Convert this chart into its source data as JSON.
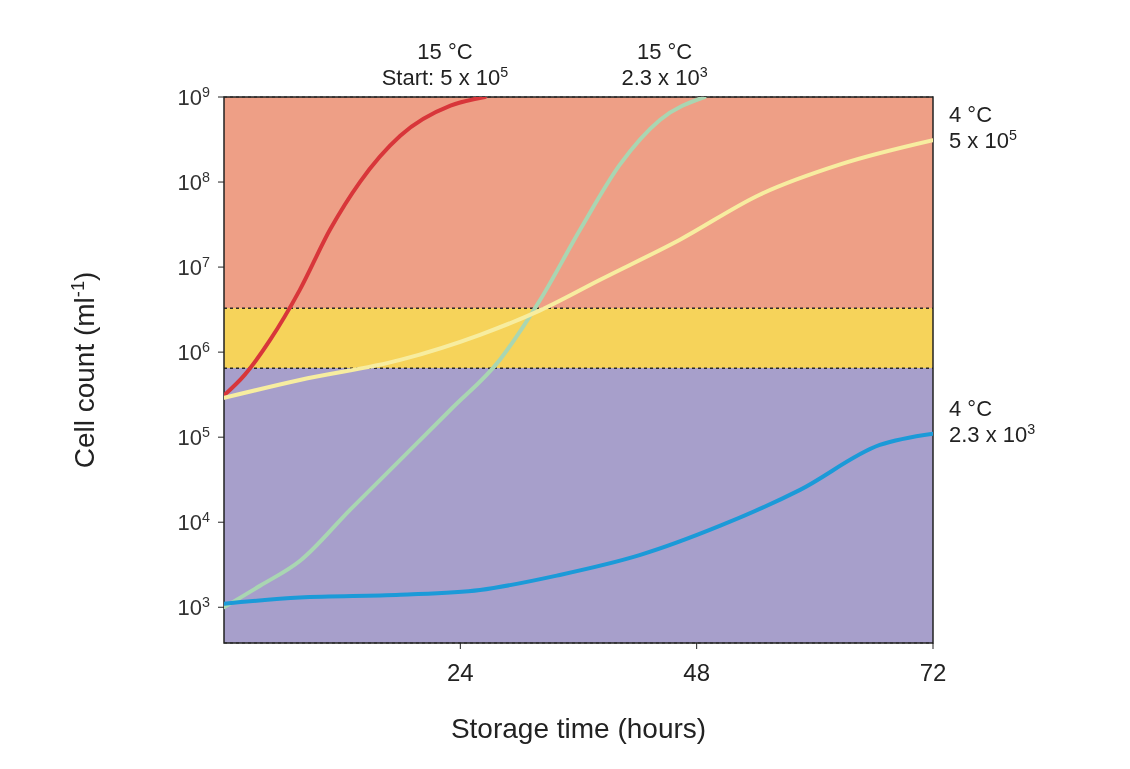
{
  "chart_data": {
    "type": "line",
    "xlabel": "Storage time (hours)",
    "ylabel": "Cell count (ml$^{-1}$)",
    "log": "y",
    "grid": false,
    "line_style": "solid",
    "xlim": [
      0,
      72
    ],
    "xticks": [
      24,
      48,
      72
    ],
    "ylim": [
      380,
      1000000000
    ],
    "yticks": [
      {
        "value": 1000,
        "label": "10$^{3}$"
      },
      {
        "value": 10000,
        "label": "10$^{4}$"
      },
      {
        "value": 100000,
        "label": "10$^{5}$"
      },
      {
        "value": 1000000,
        "label": "10$^{6}$"
      },
      {
        "value": 10000000,
        "label": "10$^{7}$"
      },
      {
        "value": 100000000,
        "label": "10$^{8}$"
      },
      {
        "value": 1000000000,
        "label": "10$^{9}$"
      }
    ],
    "bands": [
      {
        "axis": "y",
        "from": 380,
        "to": 650000,
        "color": "#a79fcb"
      },
      {
        "axis": "y",
        "from": 650000,
        "to": 3300000,
        "color": "#f6d35a"
      },
      {
        "axis": "y",
        "from": 3300000,
        "to": 1000000000,
        "color": "#ee9f86"
      }
    ],
    "series": [
      {
        "name": "15 °C\nStart: 5 x 10$^{5}$",
        "color": "#d8363a",
        "x": [
          0,
          2.1,
          4.7,
          7.7,
          10.8,
          13.8,
          17.9,
          23,
          26.5
        ],
        "values": [
          310000,
          540000,
          1400000,
          5400000,
          28000000,
          100000000,
          350000000,
          790000000,
          1000000000
        ]
      },
      {
        "name": "15 °C\n2.3 x 10$^{3}$",
        "color": "#a9d6b2",
        "x": [
          0,
          3.7,
          7.7,
          12.8,
          17.9,
          23,
          28,
          32.1,
          36.2,
          40.2,
          44.3,
          48.8
        ],
        "values": [
          1000,
          1800,
          3500,
          14000,
          54000,
          210000,
          810000,
          4100000,
          28000000,
          160000000,
          540000000,
          1000000000
        ]
      },
      {
        "name": "4 °C\n5 x 10$^{5}$",
        "color": "#f7eda0",
        "x": [
          0,
          7.7,
          17.9,
          26,
          32.1,
          38.2,
          46.3,
          54.4,
          62.5,
          72
        ],
        "values": [
          290000,
          470000,
          810000,
          1600000,
          3100000,
          7100000,
          21000000,
          71000000,
          160000000,
          310000000
        ]
      },
      {
        "name": "4 °C\n2.3 x 10$^{3}$",
        "color": "#1b9ad8",
        "x": [
          0,
          7.7,
          17.9,
          26,
          34.1,
          42.2,
          50.4,
          58.5,
          66.6,
          72
        ],
        "values": [
          1100,
          1300,
          1400,
          1600,
          2400,
          4100,
          9100,
          24000,
          81000,
          110000
        ]
      }
    ]
  }
}
